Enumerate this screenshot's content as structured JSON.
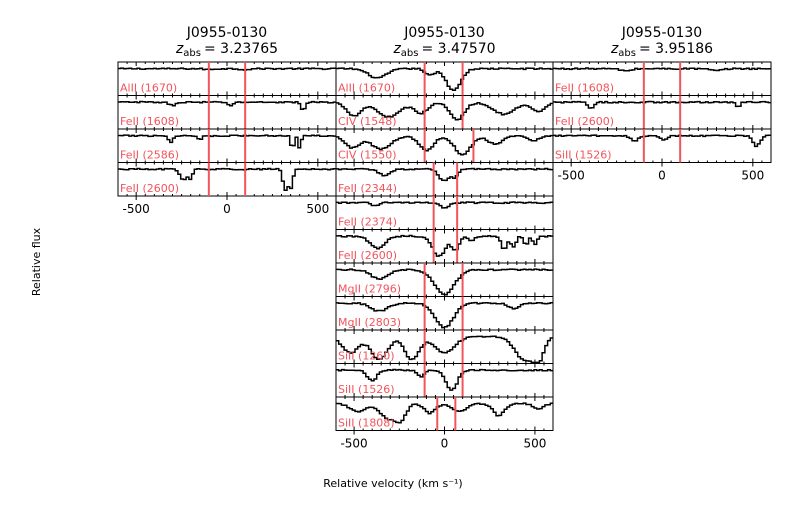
{
  "chart_data": {
    "type": "line",
    "xlabel": "Relative velocity (km s⁻¹)",
    "ylabel": "Relative flux",
    "xlim": [
      -600,
      600
    ],
    "xticks": [
      -500,
      0,
      500
    ],
    "ylim": [
      0,
      1.25
    ],
    "line_color": "#f2545b",
    "panels": [
      {
        "name": "J0955-0130",
        "zabs_symbol": "z",
        "zabs_subscript": "abs",
        "zabs_value": "= 3.23765",
        "vlines": [
          -100,
          100
        ],
        "rows": [
          {
            "label": "AlII (1670)",
            "features": [
              [
                -100,
                0.03,
                25
              ],
              [
                100,
                0.03,
                25
              ]
            ]
          },
          {
            "label": "FeII (1608)",
            "features": [
              [
                -300,
                0.12,
                20
              ],
              [
                20,
                0.12,
                15
              ],
              [
                420,
                0.3,
                12
              ]
            ]
          },
          {
            "label": "FeII (2586)",
            "features": [
              [
                -310,
                0.25,
                12
              ],
              [
                -150,
                0.15,
                12
              ],
              [
                360,
                0.55,
                8
              ],
              [
                400,
                0.45,
                8
              ]
            ]
          },
          {
            "label": "FeII (2600)",
            "features": [
              [
                -240,
                0.4,
                20
              ],
              [
                -200,
                0.3,
                10
              ],
              [
                320,
                0.75,
                12
              ],
              [
                350,
                0.7,
                12
              ]
            ]
          }
        ]
      },
      {
        "name": "J0955-0130",
        "zabs_symbol": "z",
        "zabs_subscript": "abs",
        "zabs_value": "= 3.47570",
        "vlines": [
          -110,
          100
        ],
        "rows": [
          {
            "label": "AlII (1670)",
            "vlines": [
              -110,
              100
            ],
            "features": [
              [
                -370,
                0.35,
                50
              ],
              [
                -80,
                0.25,
                25
              ],
              [
                50,
                0.8,
                40
              ]
            ]
          },
          {
            "label": "CIV (1548)",
            "vlines": [
              -110,
              100
            ],
            "features": [
              [
                -500,
                0.5,
                40
              ],
              [
                -310,
                0.55,
                60
              ],
              [
                -130,
                0.4,
                40
              ],
              [
                70,
                0.65,
                40
              ],
              [
                330,
                0.45,
                60
              ],
              [
                520,
                0.35,
                40
              ]
            ]
          },
          {
            "label": "CIV (1550)",
            "vlines": [
              -110,
              160
            ],
            "features": [
              [
                -510,
                0.45,
                40
              ],
              [
                -350,
                0.5,
                55
              ],
              [
                -100,
                0.55,
                40
              ],
              [
                100,
                0.7,
                45
              ],
              [
                280,
                0.3,
                40
              ],
              [
                490,
                0.2,
                30
              ]
            ]
          },
          {
            "label": "FeII (2344)",
            "vlines": [
              -60,
              70
            ],
            "features": [
              [
                -330,
                0.25,
                30
              ],
              [
                0,
                0.45,
                30
              ],
              [
                60,
                0.25,
                15
              ]
            ]
          },
          {
            "label": "FeII (2374)",
            "vlines": [
              -60,
              70
            ],
            "features": [
              [
                -380,
                0.12,
                20
              ],
              [
                0,
                0.2,
                25
              ]
            ]
          },
          {
            "label": "FeII (2600)",
            "vlines": [
              -60,
              70
            ],
            "features": [
              [
                -370,
                0.45,
                40
              ],
              [
                -30,
                0.75,
                35
              ],
              [
                60,
                0.5,
                20
              ],
              [
                150,
                0.2,
                15
              ],
              [
                330,
                0.5,
                15
              ],
              [
                380,
                0.4,
                15
              ],
              [
                450,
                0.35,
                12
              ],
              [
                500,
                0.3,
                12
              ]
            ]
          },
          {
            "label": "MgII (2796)",
            "vlines": [
              -110,
              100
            ],
            "features": [
              [
                -360,
                0.35,
                45
              ],
              [
                0,
                0.92,
                55
              ]
            ]
          },
          {
            "label": "MgII (2803)",
            "vlines": [
              -110,
              100
            ],
            "features": [
              [
                -360,
                0.3,
                45
              ],
              [
                0,
                0.9,
                50
              ],
              [
                380,
                0.2,
                30
              ]
            ]
          },
          {
            "label": "SiII (1260)",
            "vlines": [
              -110,
              100
            ],
            "features": [
              [
                -520,
                0.6,
                45
              ],
              [
                -360,
                0.85,
                45
              ],
              [
                -180,
                0.85,
                40
              ],
              [
                0,
                0.6,
                55
              ],
              [
                440,
                0.85,
                50
              ],
              [
                520,
                0.8,
                30
              ]
            ]
          },
          {
            "label": "SiII (1526)",
            "vlines": [
              -110,
              100
            ],
            "features": [
              [
                -400,
                0.4,
                25
              ],
              [
                -130,
                0.25,
                20
              ],
              [
                40,
                0.75,
                30
              ]
            ]
          },
          {
            "label": "SiII (1808)",
            "vlines": [
              -40,
              60
            ],
            "features": [
              [
                -480,
                0.3,
                40
              ],
              [
                -310,
                0.55,
                45
              ],
              [
                -240,
                0.5,
                30
              ],
              [
                -80,
                0.35,
                30
              ],
              [
                80,
                0.3,
                40
              ],
              [
                300,
                0.45,
                30
              ],
              [
                520,
                0.2,
                25
              ]
            ]
          }
        ]
      },
      {
        "name": "J0955-0130",
        "zabs_symbol": "z",
        "zabs_subscript": "abs",
        "zabs_value": "= 3.95186",
        "vlines": [
          -100,
          100
        ],
        "rows": [
          {
            "label": "FeII (1608)",
            "features": [
              [
                -200,
                0.08,
                30
              ],
              [
                300,
                0.08,
                30
              ]
            ]
          },
          {
            "label": "FeII (2600)",
            "features": [
              [
                -400,
                0.2,
                10
              ],
              [
                -380,
                0.18,
                10
              ],
              [
                420,
                0.22,
                10
              ]
            ]
          },
          {
            "label": "SiII (1526)",
            "features": [
              [
                -150,
                0.2,
                20
              ],
              [
                10,
                0.15,
                20
              ],
              [
                520,
                0.4,
                20
              ]
            ]
          }
        ]
      }
    ]
  }
}
